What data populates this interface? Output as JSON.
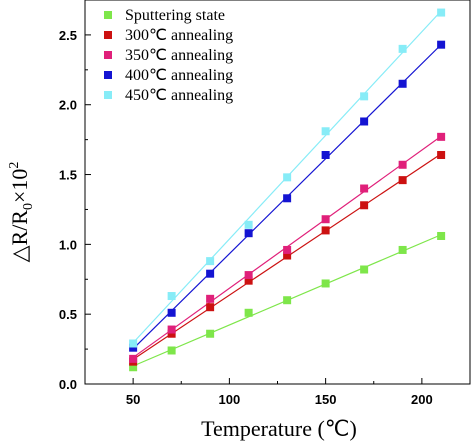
{
  "chart_data": {
    "type": "scatter",
    "xlabel": "Temperature (℃)",
    "ylabel_parts": {
      "delta": "△",
      "r": "R/R",
      "sub": "0",
      "times": "×10",
      "sup": "2"
    },
    "xlim": [
      25,
      225
    ],
    "ylim": [
      0,
      2.75
    ],
    "xticks": [
      50,
      100,
      150,
      200
    ],
    "xtick_labels": [
      "50",
      "100",
      "150",
      "200"
    ],
    "yticks": [
      0.0,
      0.5,
      1.0,
      1.5,
      2.0,
      2.5
    ],
    "ytick_labels": [
      "0.0",
      "0.5",
      "1.0",
      "1.5",
      "2.0",
      "2.5"
    ],
    "legend_position": "top-left",
    "x": [
      50,
      70,
      90,
      110,
      130,
      150,
      170,
      190,
      210
    ],
    "series": [
      {
        "name": "Sputtering state",
        "color": "#7ee64a",
        "values": [
          0.12,
          0.24,
          0.36,
          0.51,
          0.6,
          0.72,
          0.82,
          0.96,
          1.06
        ]
      },
      {
        "name": "300℃ annealing",
        "color": "#cc1111",
        "values": [
          0.16,
          0.36,
          0.55,
          0.74,
          0.92,
          1.1,
          1.28,
          1.46,
          1.64
        ]
      },
      {
        "name": "350℃ annealing",
        "color": "#e0207a",
        "values": [
          0.18,
          0.39,
          0.61,
          0.78,
          0.96,
          1.18,
          1.4,
          1.57,
          1.77
        ]
      },
      {
        "name": "400℃ annealing",
        "color": "#1414d2",
        "values": [
          0.26,
          0.51,
          0.79,
          1.08,
          1.33,
          1.64,
          1.88,
          2.15,
          2.43
        ]
      },
      {
        "name": "450℃ annealing",
        "color": "#87ecf7",
        "values": [
          0.29,
          0.63,
          0.88,
          1.14,
          1.48,
          1.81,
          2.06,
          2.4,
          2.66
        ]
      }
    ]
  }
}
